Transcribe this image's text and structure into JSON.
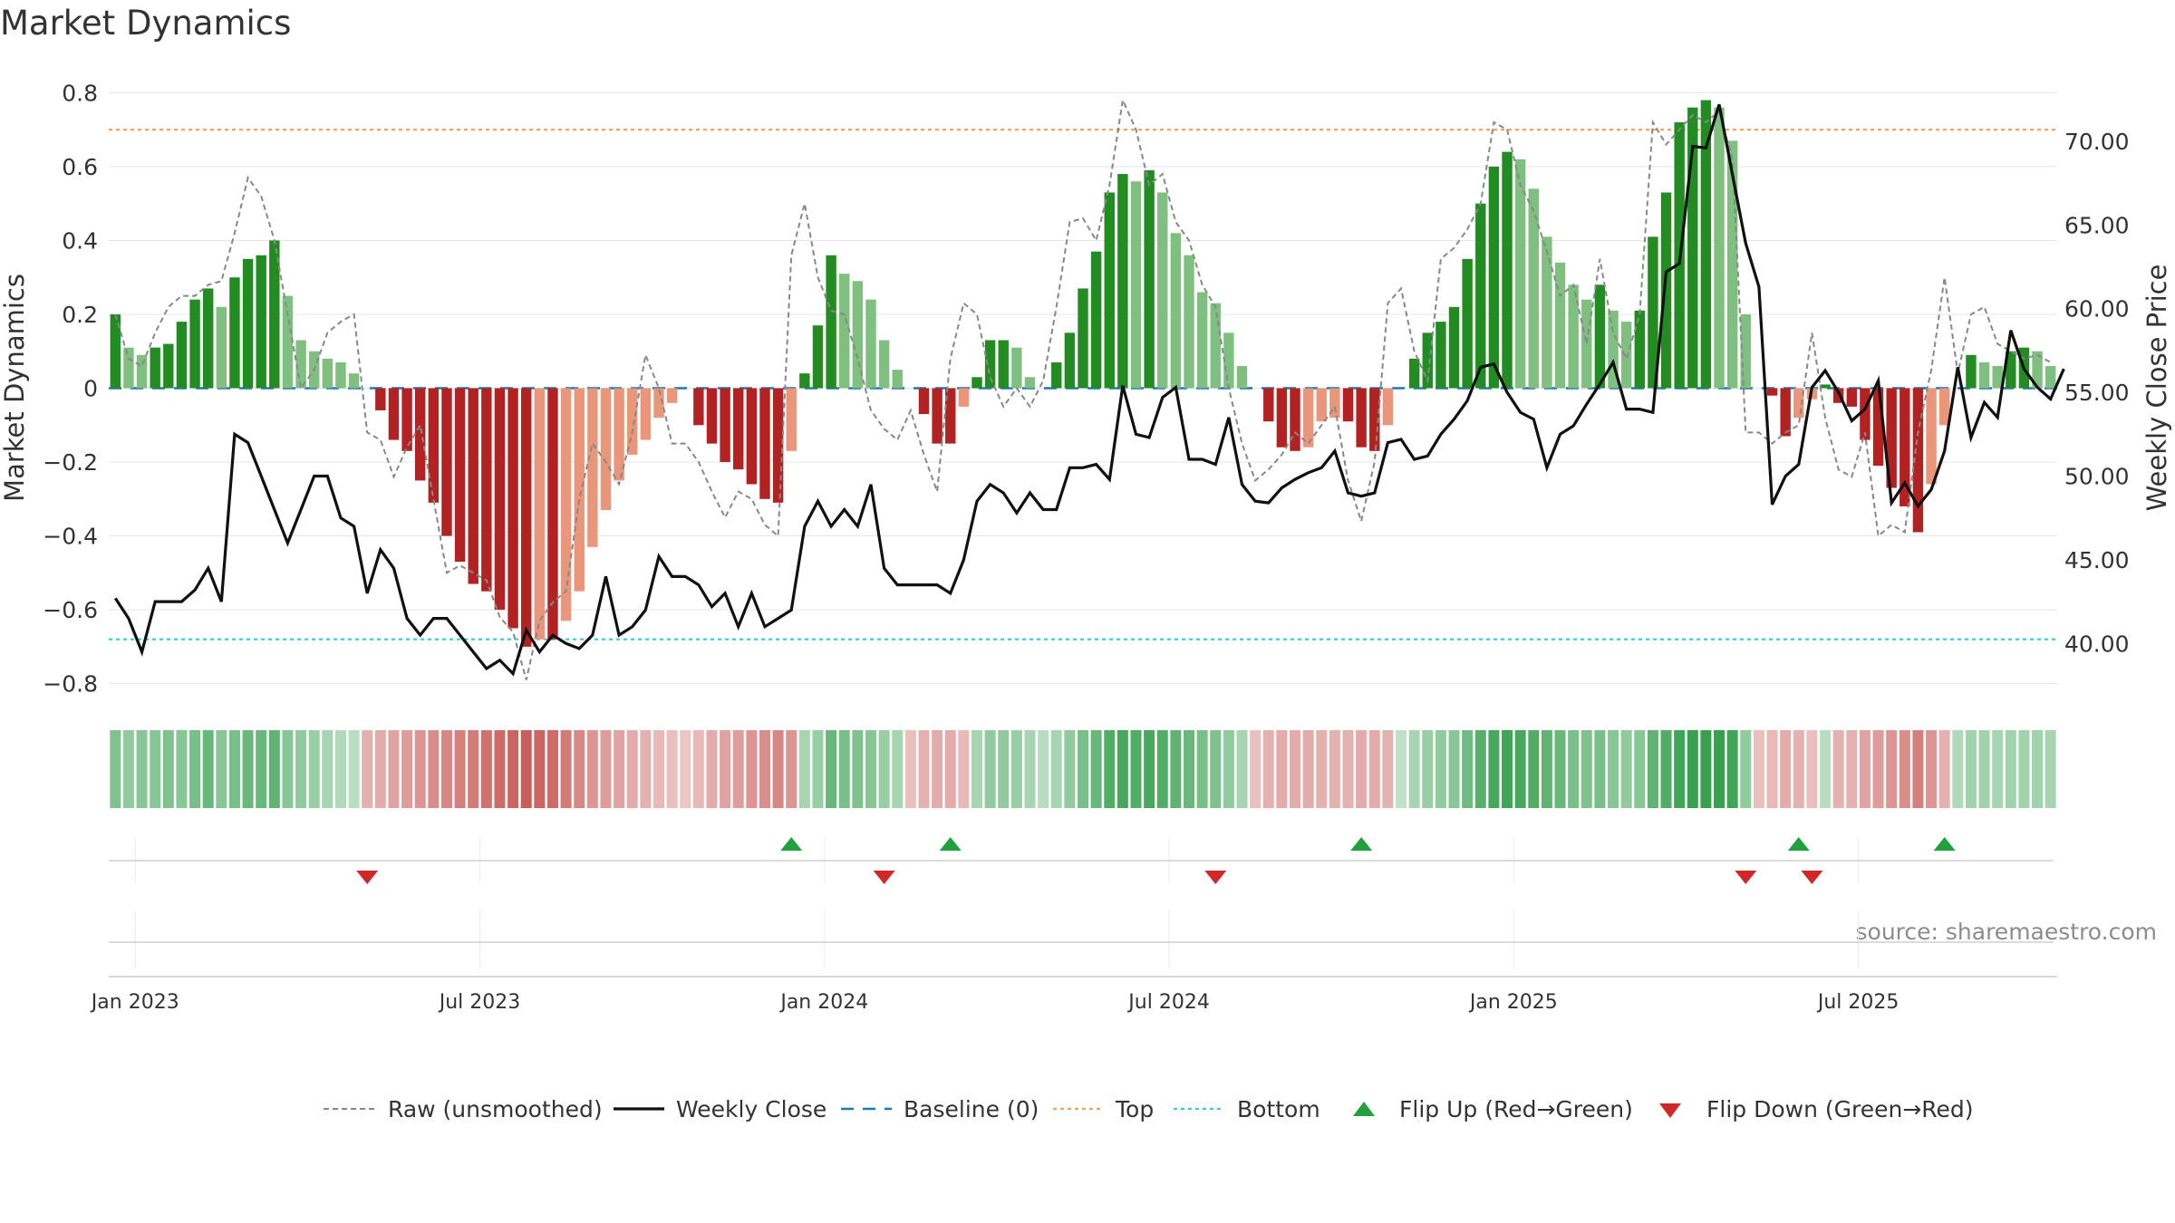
{
  "title": "Market Dynamics",
  "source": "source: sharemaestro.com",
  "colors": {
    "green_strong": "#228b22",
    "green_light": "#7fbf7f",
    "red_strong": "#b22222",
    "red_light": "#e9967a",
    "raw": "#888888",
    "close": "#111111",
    "baseline": "#1f77b4",
    "top": "#f4a460",
    "bottom": "#40c8d0",
    "flip_up": "#22a040",
    "flip_down": "#d02828"
  },
  "chart_data": {
    "type": "bar+line",
    "title": "Market Dynamics",
    "ylabel_left": "Market Dynamics",
    "ylabel_right": "Weekly Close Price",
    "ylim_left": [
      -0.85,
      0.85
    ],
    "ylim_right": [
      36.5,
      74.0
    ],
    "yticks_left": [
      "0.8",
      "0.6",
      "0.4",
      "0.2",
      "0",
      "−0.2",
      "−0.4",
      "−0.6",
      "−0.8"
    ],
    "yticks_left_values": [
      0.8,
      0.6,
      0.4,
      0.2,
      0,
      -0.2,
      -0.4,
      -0.6,
      -0.8
    ],
    "yticks_right": [
      "70.00",
      "65.00",
      "60.00",
      "55.00",
      "50.00",
      "45.00",
      "40.00"
    ],
    "yticks_right_values": [
      70,
      65,
      60,
      55,
      50,
      45,
      40
    ],
    "xticks": [
      "Jan 2023",
      "Jul 2023",
      "Jan 2024",
      "Jul 2024",
      "Jan 2025",
      "Jul 2025"
    ],
    "xticks_week": [
      2,
      28,
      54,
      80,
      106,
      132
    ],
    "top_level": 0.7,
    "bottom_level": -0.68,
    "baseline": 0,
    "momentum": [
      0.2,
      0.11,
      0.09,
      0.11,
      0.12,
      0.18,
      0.24,
      0.27,
      0.22,
      0.3,
      0.35,
      0.36,
      0.4,
      0.25,
      0.13,
      0.1,
      0.08,
      0.07,
      0.04,
      0,
      -0.06,
      -0.14,
      -0.17,
      -0.25,
      -0.31,
      -0.4,
      -0.47,
      -0.53,
      -0.55,
      -0.6,
      -0.65,
      -0.7,
      -0.68,
      -0.68,
      -0.63,
      -0.55,
      -0.43,
      -0.33,
      -0.25,
      -0.18,
      -0.14,
      -0.08,
      -0.04,
      0,
      -0.1,
      -0.15,
      -0.2,
      -0.22,
      -0.26,
      -0.3,
      -0.31,
      -0.17,
      0.04,
      0.17,
      0.36,
      0.31,
      0.29,
      0.24,
      0.13,
      0.05,
      0,
      -0.07,
      -0.15,
      -0.15,
      -0.05,
      0.03,
      0.13,
      0.13,
      0.11,
      0.03,
      0,
      0.07,
      0.15,
      0.27,
      0.37,
      0.53,
      0.58,
      0.56,
      0.59,
      0.53,
      0.42,
      0.36,
      0.26,
      0.23,
      0.15,
      0.06,
      0,
      -0.09,
      -0.16,
      -0.17,
      -0.16,
      -0.09,
      -0.08,
      -0.09,
      -0.16,
      -0.17,
      -0.1,
      0,
      0.08,
      0.15,
      0.18,
      0.22,
      0.35,
      0.5,
      0.6,
      0.64,
      0.62,
      0.54,
      0.41,
      0.34,
      0.28,
      0.24,
      0.28,
      0.21,
      0.18,
      0.21,
      0.41,
      0.53,
      0.72,
      0.76,
      0.78,
      0.76,
      0.67,
      0.2,
      0,
      -0.02,
      -0.13,
      -0.08,
      -0.03,
      0.01,
      -0.04,
      -0.05,
      -0.14,
      -0.21,
      -0.27,
      -0.32,
      -0.39,
      -0.26,
      -0.1,
      0,
      0.09,
      0.07,
      0.06,
      0.1,
      0.11,
      0.1,
      0.06
    ],
    "raw": [
      0.2,
      0.08,
      0.06,
      0.15,
      0.22,
      0.25,
      0.25,
      0.28,
      0.29,
      0.42,
      0.57,
      0.52,
      0.4,
      0.2,
      0.0,
      0.05,
      0.15,
      0.18,
      0.2,
      -0.12,
      -0.14,
      -0.24,
      -0.16,
      -0.1,
      -0.3,
      -0.5,
      -0.48,
      -0.5,
      -0.52,
      -0.62,
      -0.66,
      -0.79,
      -0.63,
      -0.58,
      -0.55,
      -0.3,
      -0.15,
      -0.2,
      -0.26,
      -0.12,
      0.09,
      0.0,
      -0.15,
      -0.15,
      -0.2,
      -0.28,
      -0.35,
      -0.28,
      -0.3,
      -0.37,
      -0.4,
      0.36,
      0.5,
      0.3,
      0.21,
      0.2,
      0.08,
      -0.06,
      -0.11,
      -0.14,
      -0.06,
      -0.18,
      -0.28,
      0.08,
      0.23,
      0.2,
      0.03,
      -0.05,
      0.0,
      -0.05,
      0.02,
      0.22,
      0.45,
      0.46,
      0.4,
      0.55,
      0.78,
      0.7,
      0.55,
      0.58,
      0.45,
      0.4,
      0.28,
      0.22,
      0.0,
      -0.15,
      -0.25,
      -0.22,
      -0.18,
      -0.12,
      -0.15,
      -0.1,
      -0.05,
      -0.25,
      -0.36,
      -0.2,
      0.23,
      0.27,
      0.1,
      0.02,
      0.35,
      0.38,
      0.43,
      0.5,
      0.72,
      0.7,
      0.55,
      0.48,
      0.37,
      0.25,
      0.28,
      0.12,
      0.35,
      0.15,
      0.08,
      0.2,
      0.72,
      0.66,
      0.7,
      0.74,
      0.72,
      0.75,
      0.62,
      -0.12,
      -0.12,
      -0.15,
      -0.12,
      -0.1,
      0.15,
      -0.08,
      -0.22,
      -0.24,
      -0.12,
      -0.4,
      -0.37,
      -0.39,
      -0.12,
      0.05,
      0.3,
      0.04,
      0.2,
      0.22,
      0.12,
      0.1,
      0.08,
      0.09,
      0.07
    ],
    "weekly_close": [
      42.7,
      41.5,
      39.5,
      42.5,
      42.5,
      42.5,
      43.2,
      44.5,
      42.5,
      52.5,
      52,
      50,
      48,
      46,
      48,
      50,
      50,
      47.5,
      47,
      43,
      45.6,
      44.5,
      41.5,
      40.5,
      41.5,
      41.5,
      40.5,
      39.5,
      38.5,
      39,
      38.2,
      40.8,
      39.5,
      40.5,
      40,
      39.7,
      40.5,
      44,
      40.5,
      41,
      42,
      45.2,
      44,
      44,
      43.5,
      42.2,
      43,
      41,
      43,
      41,
      41.5,
      42,
      47,
      48.5,
      47,
      48,
      47,
      49.5,
      44.5,
      43.5,
      43.5,
      43.5,
      43.5,
      43,
      45,
      48.5,
      49.5,
      49,
      47.8,
      49,
      48,
      48,
      50.5,
      50.5,
      50.7,
      49.8,
      55.4,
      52.5,
      52.3,
      54.7,
      55.3,
      51,
      51,
      50.7,
      53.5,
      49.5,
      48.5,
      48.4,
      49.3,
      49.8,
      50.2,
      50.5,
      51.5,
      49,
      48.8,
      49,
      52,
      52.2,
      51,
      51.2,
      52.5,
      53.4,
      54.5,
      56.5,
      56.7,
      55,
      53.8,
      53.4,
      50.5,
      52.5,
      53,
      54.3,
      55.5,
      56.8,
      54,
      54,
      53.8,
      62.2,
      62.7,
      69.7,
      69.6,
      72.2,
      68,
      63.9,
      61.3,
      48.3,
      50,
      50.7,
      55.3,
      56.3,
      55,
      53.3,
      54,
      55.7,
      48.4,
      49.6,
      48.2,
      49.2,
      51.5,
      56.5,
      52.3,
      54.4,
      53.5,
      58.7,
      56.4,
      55.3,
      54.6,
      56.4
    ],
    "regime_strip": [
      0.55,
      0.45,
      0.5,
      0.5,
      0.55,
      0.5,
      0.6,
      0.7,
      0.5,
      0.6,
      0.7,
      0.7,
      0.75,
      0.5,
      0.45,
      0.4,
      0.3,
      0.25,
      0.2,
      -0.3,
      -0.35,
      -0.4,
      -0.45,
      -0.5,
      -0.55,
      -0.6,
      -0.65,
      -0.7,
      -0.75,
      -0.8,
      -0.85,
      -0.9,
      -0.85,
      -0.8,
      -0.7,
      -0.6,
      -0.5,
      -0.45,
      -0.4,
      -0.35,
      -0.3,
      -0.25,
      -0.2,
      -0.15,
      -0.25,
      -0.35,
      -0.4,
      -0.45,
      -0.5,
      -0.55,
      -0.6,
      -0.5,
      0.3,
      0.4,
      0.7,
      0.6,
      0.55,
      0.5,
      0.4,
      0.3,
      -0.2,
      -0.3,
      -0.35,
      -0.35,
      -0.25,
      0.3,
      0.45,
      0.45,
      0.4,
      0.3,
      0.2,
      0.3,
      0.45,
      0.6,
      0.7,
      0.85,
      0.9,
      0.85,
      0.9,
      0.85,
      0.75,
      0.7,
      0.6,
      0.55,
      0.45,
      0.3,
      -0.2,
      -0.3,
      -0.35,
      -0.35,
      -0.35,
      -0.3,
      -0.3,
      -0.3,
      -0.35,
      -0.35,
      -0.3,
      0.15,
      0.3,
      0.4,
      0.45,
      0.5,
      0.65,
      0.8,
      0.9,
      0.95,
      0.9,
      0.85,
      0.75,
      0.7,
      0.6,
      0.55,
      0.6,
      0.5,
      0.45,
      0.5,
      0.75,
      0.85,
      0.95,
      1,
      1,
      1,
      0.95,
      0.45,
      -0.2,
      -0.25,
      -0.35,
      -0.3,
      -0.2,
      0.2,
      -0.3,
      -0.3,
      -0.4,
      -0.45,
      -0.5,
      -0.55,
      -0.65,
      -0.5,
      -0.3,
      0.25,
      0.35,
      0.35,
      0.3,
      0.35,
      0.35,
      0.35,
      0.3
    ],
    "flip_up_weeks": [
      51,
      63,
      94,
      127,
      138
    ],
    "flip_down_weeks": [
      19,
      58,
      83,
      123,
      128
    ],
    "legend": [
      "Raw (unsmoothed)",
      "Weekly Close",
      "Baseline (0)",
      "Top",
      "Bottom",
      "Flip Up (Red→Green)",
      "Flip Down (Green→Red)"
    ]
  }
}
